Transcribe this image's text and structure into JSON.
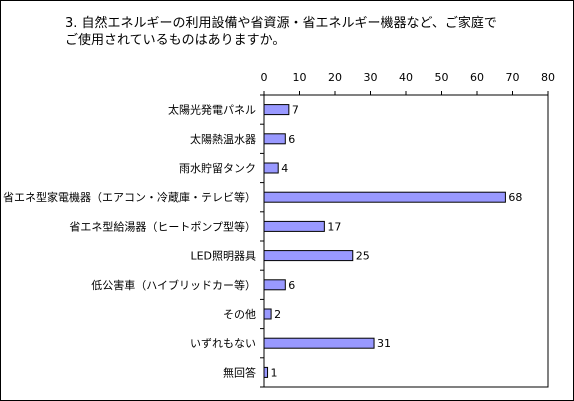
{
  "chart_data": {
    "type": "bar",
    "orientation": "horizontal",
    "title": "3. 自然エネルギーの利用設備や省資源・省エネルギー機器など、ご家庭で\nご使用されているものはありますか。",
    "categories": [
      "太陽光発電パネル",
      "太陽熱温水器",
      "雨水貯留タンク",
      "省エネ型家電機器（エアコン・冷蔵庫・テレビ等）",
      "省エネ型給湯器（ヒートポンプ型等）",
      "LED照明器具",
      "低公害車（ハイブリッドカー等）",
      "その他",
      "いずれもない",
      "無回答"
    ],
    "values": [
      7,
      6,
      4,
      68,
      17,
      25,
      6,
      2,
      31,
      1
    ],
    "x_ticks": [
      "0",
      "10",
      "20",
      "30",
      "40",
      "50",
      "60",
      "70",
      "80"
    ],
    "xlim": [
      0,
      80
    ],
    "grid": false,
    "legend": "none",
    "colors": {
      "bar_fill": "#9999ff",
      "bar_stroke": "#000000",
      "axis": "#000000"
    }
  }
}
